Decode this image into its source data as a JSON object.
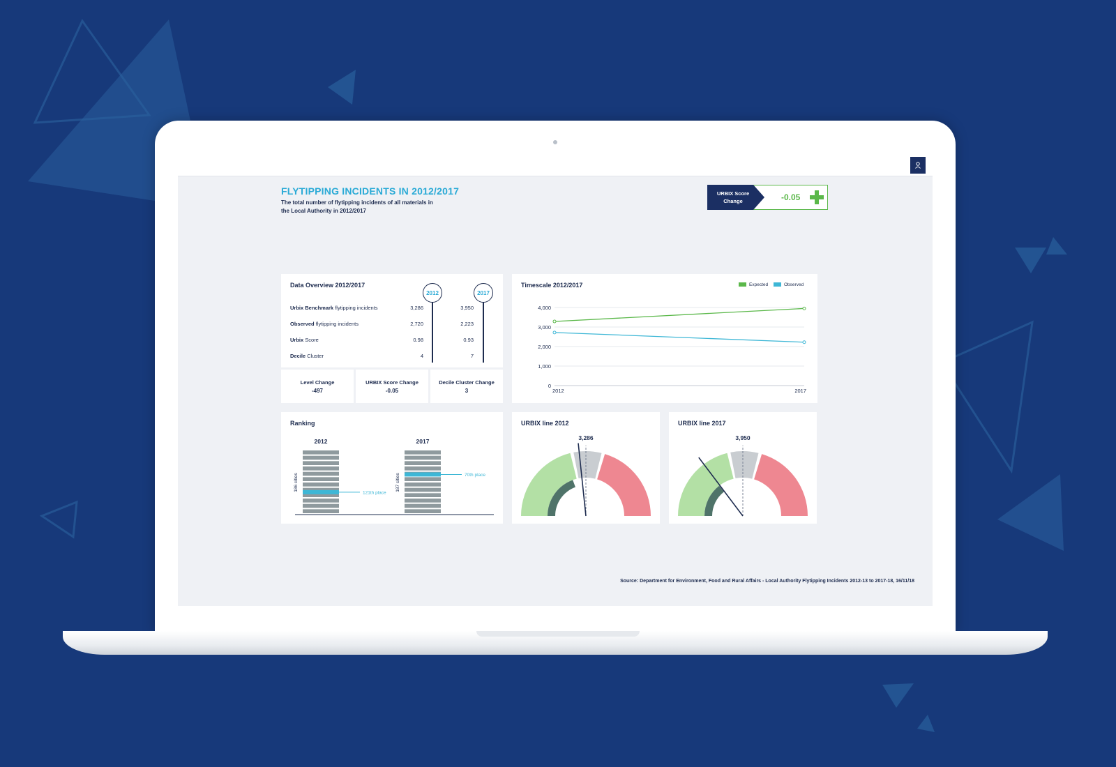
{
  "colors": {
    "accent": "#2aaad6",
    "navy": "#1e2c4f",
    "expected": "#5bb84a",
    "observed": "#3eb7d6",
    "gauge_green": "#b3e0a5",
    "gauge_grey": "#c9cdd1",
    "gauge_red": "#ee8791",
    "ranking_bar": "#8f9a9e"
  },
  "header": {
    "title": "FLYTIPPING INCIDENTS IN 2012/2017",
    "subtitle": "The total number of flytipping incidents of all materials in the Local Authority in 2012/2017",
    "user_icon": "user-icon"
  },
  "score_badge": {
    "label": "URBIX Score Change",
    "value": "-0.05",
    "icon": "plus-icon"
  },
  "overview": {
    "title": "Data Overview 2012/2017",
    "years": [
      "2012",
      "2017"
    ],
    "rows": [
      {
        "bold": "Urbix Benchmark",
        "rest": "flytipping incidents",
        "v2012": "3,286",
        "v2017": "3,950"
      },
      {
        "bold": "Observed",
        "rest": "flytipping incidents",
        "v2012": "2,720",
        "v2017": "2,223"
      },
      {
        "bold": "Urbix",
        "rest": "Score",
        "v2012": "0.98",
        "v2017": "0.93"
      },
      {
        "bold": "Decile",
        "rest": "Cluster",
        "v2012": "4",
        "v2017": "7"
      }
    ],
    "stats": [
      {
        "label": "Level Change",
        "value": "-497"
      },
      {
        "label": "URBIX Score Change",
        "value": "-0.05"
      },
      {
        "label": "Decile Cluster Change",
        "value": "3"
      }
    ]
  },
  "timescale": {
    "title": "Timescale 2012/2017",
    "legend": [
      "Expected",
      "Observed"
    ]
  },
  "ranking": {
    "title": "Ranking",
    "groups": [
      {
        "year": "2012",
        "axis_label": "186 cities",
        "place_label": "121th place",
        "total": 186,
        "place": 121
      },
      {
        "year": "2017",
        "axis_label": "187 cities",
        "place_label": "70th place",
        "total": 187,
        "place": 70
      }
    ]
  },
  "gauges": [
    {
      "title": "URBIX line 2012",
      "value_label": "3,286"
    },
    {
      "title": "URBIX line 2017",
      "value_label": "3,950"
    }
  ],
  "source": "Source: Department for Environment, Food and Rural Affairs - Local Authority Flytipping Incidents 2012-13 to 2017-18, 16/11/18",
  "chart_data": {
    "type": "line",
    "title": "Timescale 2012/2017",
    "x": [
      "2012",
      "2017"
    ],
    "series": [
      {
        "name": "Expected",
        "values": [
          3286,
          3950
        ]
      },
      {
        "name": "Observed",
        "values": [
          2720,
          2223
        ]
      }
    ],
    "ylim": [
      0,
      4000
    ],
    "yticks": [
      "0",
      "1,000",
      "2,000",
      "3,000",
      "4,000"
    ],
    "grid": true,
    "legend": "top-right"
  }
}
